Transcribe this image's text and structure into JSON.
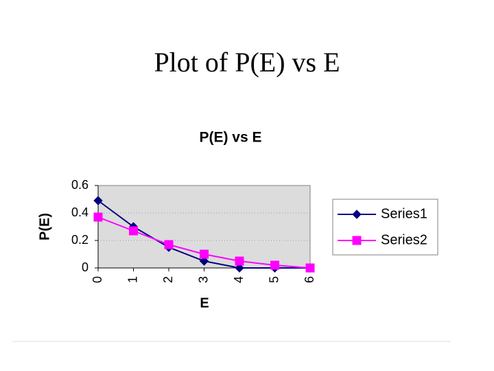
{
  "slide": {
    "title": "Plot of P(E) vs E"
  },
  "chart_data": {
    "type": "line",
    "title": "P(E) vs E",
    "x_label": "E",
    "y_label": "P(E)",
    "categories": [
      "0",
      "1",
      "2",
      "3",
      "4",
      "5",
      "6"
    ],
    "series": [
      {
        "name": "Series1",
        "color": "#000080",
        "marker": "diamond",
        "values": [
          0.49,
          0.3,
          0.15,
          0.05,
          0,
          0,
          0
        ]
      },
      {
        "name": "Series2",
        "color": "#ff00ff",
        "marker": "square",
        "values": [
          0.37,
          0.27,
          0.17,
          0.1,
          0.05,
          0.02,
          0
        ]
      }
    ],
    "ylim": [
      0,
      0.6
    ],
    "yticks": [
      0,
      0.2,
      0.4,
      0.6
    ],
    "grid": true,
    "legend": "right"
  }
}
